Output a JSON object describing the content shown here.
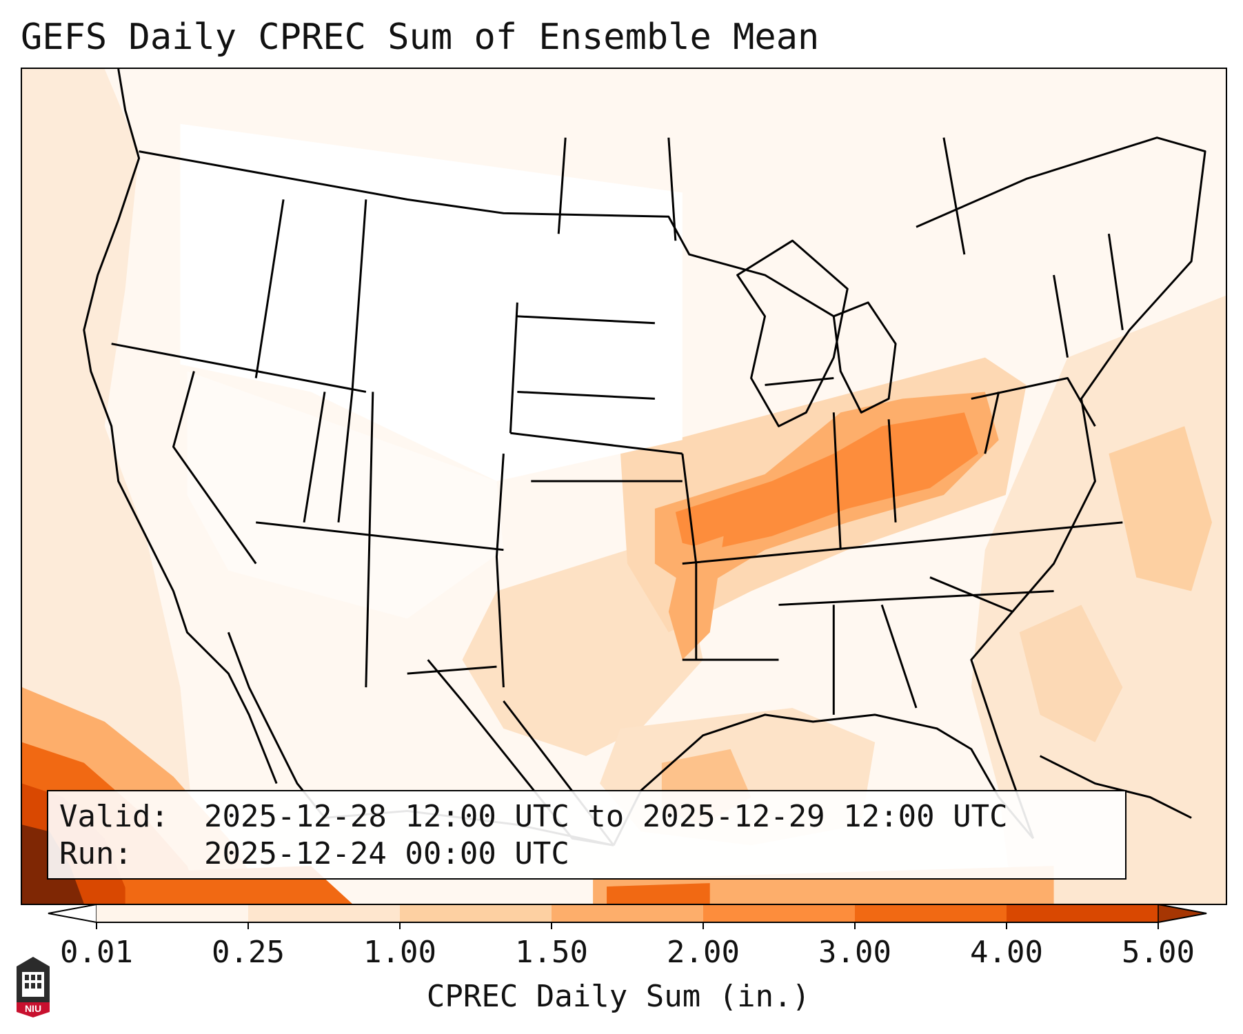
{
  "title": "GEFS Daily CPREC Sum of Ensemble Mean",
  "info": {
    "valid_label": "Valid:",
    "valid_value": "2025-12-28 12:00 UTC to 2025-12-29 12:00 UTC",
    "run_label": "Run:",
    "run_value": "2025-12-24 00:00 UTC"
  },
  "colorbar": {
    "label": "CPREC Daily Sum (in.)",
    "ticks": [
      "0.01",
      "0.25",
      "1.00",
      "1.50",
      "2.00",
      "3.00",
      "4.00",
      "5.00"
    ],
    "colors": [
      "#fff5eb",
      "#fee6ce",
      "#fdd0a2",
      "#fdae6b",
      "#fd8d3c",
      "#f16913",
      "#d94801",
      "#a63603"
    ],
    "extend": "both"
  },
  "logo": {
    "text": "NIU"
  },
  "map": {
    "projection": "Lambert conformal, CONUS",
    "field": "CPREC",
    "colors": {
      "very_light": "#fff5eb",
      "light": "#fee6ce",
      "medium": "#fdd0a2",
      "orange": "#fdae6b",
      "strong": "#fd8d3c",
      "deep": "#f16913",
      "darker": "#d94801",
      "darkest": "#7f2704"
    }
  }
}
